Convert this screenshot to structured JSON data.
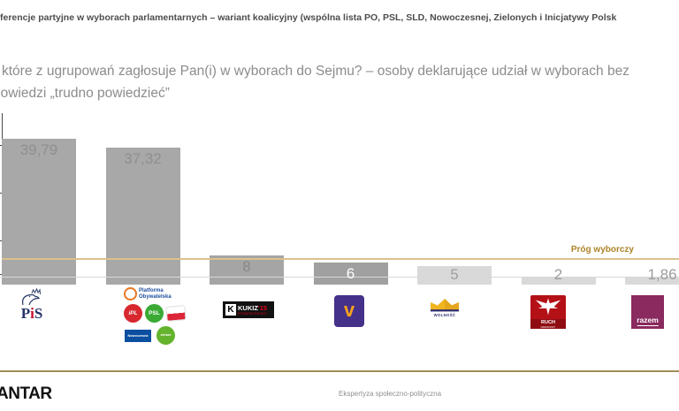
{
  "header": {
    "title": "ferencje partyjne w wyborach parlamentarnych – wariant koalicyjny (wspólna lista PO, PSL, SLD, Nowoczesnej, Zielonych i Inicjatywy Polsk",
    "question_line1": "które z ugrupowań zagłosuje Pan(i) w wyborach do Sejmu? – osoby deklarujące udział w wyborach bez",
    "question_line2": "powiedzi „trudno powiedzieć”"
  },
  "chart_data": {
    "type": "bar",
    "title": "ferencje partyjne w wyborach parlamentarnych – wariant koalicyjny (wspólna lista PO, PSL, SLD, Nowoczesnej, Zielonych i Inicjatywy Polsk",
    "categories": [
      "PiS",
      "Koalicja (Platforma Obywatelska, iPL, PSL, Nowoczesna, Zieloni)",
      "Kukiz'15",
      "Wiosna",
      "Wolność",
      "Ruch Narodowy",
      "Razem"
    ],
    "values": [
      39.79,
      37.32,
      8,
      6,
      5,
      2,
      1.86
    ],
    "value_labels": [
      "39,79",
      "37,32",
      "8",
      "6",
      "5",
      "2",
      "1,86"
    ],
    "bar_colors": [
      "#a8a8a8",
      "#a8a8a8",
      "#a5a5a5",
      "#a0a0a0",
      "#d9d9d9",
      "#d9d9d9",
      "#d9d9d9"
    ],
    "value_label_colors": [
      "#8f8f8f",
      "#8f8f8f",
      "#898989",
      "#ffffff",
      "#9f9f9f",
      "#9c9c9c",
      "#9c9c9c"
    ],
    "threshold_line": {
      "label": "Próg wyborczy",
      "value_percent_estimate": 7,
      "line_color": "#dcc18c",
      "label_color": "#ad8428"
    },
    "y_axis": {
      "labels_visible": false,
      "gridlines": false,
      "unlabeled_ticks": 4
    },
    "ylim": [
      0,
      47
    ],
    "legend": null,
    "xlabel": "",
    "ylabel": ""
  },
  "logos": {
    "pis": {
      "p": "P",
      "i": "i",
      "s": "S"
    },
    "coalition": {
      "po_line1": "Platforma",
      "po_line2": "Obywatelska",
      "ipl": "iPL",
      "psl": "PSL",
      "nowoczesna": "Nowoczesna",
      "zieloni": "zieloni"
    },
    "kukiz": {
      "k": "K",
      "name": "KUKIZ",
      "num": "'15",
      "slogan": "POTRAFISZ POLSKO!"
    },
    "wiosna": {
      "v": "v"
    },
    "wolnosc": {
      "label": "WOLNOŚĆ"
    },
    "ruch": {
      "line1": "RUCH",
      "line2": "NARODOWY"
    },
    "razem": {
      "label": "razem"
    }
  },
  "footer": {
    "brand_partial": "ANTAR",
    "caption": "Ekspertyza społeczno-polityczna"
  },
  "colors": {
    "accent_gold": "#a18d52",
    "pis_navy": "#27336b",
    "pis_red": "#c8102e",
    "po_orange": "#e87722",
    "po_blue": "#1f4e9c",
    "wiosna_purple": "#453189",
    "wiosna_orange": "#f6a21d",
    "wolnosc_yellow": "#f0b41e",
    "ruch_red": "#b41117",
    "razem_plum": "#8a2a5e"
  }
}
